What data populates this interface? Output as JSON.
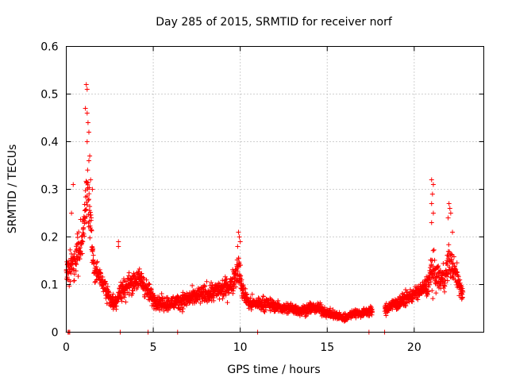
{
  "chart_data": {
    "type": "scatter",
    "title": "Day 285 of 2015, SRMTID for receiver norf",
    "xlabel": "GPS time / hours",
    "ylabel": "SRMTID / TECUs",
    "xlim": [
      0,
      24
    ],
    "ylim": [
      0,
      0.6
    ],
    "x_ticks": [
      0,
      5,
      10,
      15,
      20
    ],
    "x_tick_labels": [
      "0",
      "5",
      "10",
      "15",
      "20"
    ],
    "y_ticks": [
      0,
      0.1,
      0.2,
      0.3,
      0.4,
      0.5,
      0.6
    ],
    "y_tick_labels": [
      "0",
      "0.1",
      "0.2",
      "0.3",
      "0.4",
      "0.5",
      "0.6"
    ],
    "grid": true,
    "marker": "plus",
    "color": "#ff0000",
    "envelope": {
      "hours": [
        0.0,
        0.1,
        0.3,
        0.5,
        0.7,
        0.9,
        1.0,
        1.1,
        1.2,
        1.3,
        1.4,
        1.6,
        1.8,
        2.0,
        2.3,
        2.5,
        2.8,
        3.0,
        3.3,
        3.6,
        4.0,
        4.3,
        4.6,
        5.0,
        5.5,
        6.0,
        6.5,
        7.0,
        7.5,
        8.0,
        8.5,
        9.0,
        9.5,
        9.7,
        9.9,
        10.1,
        10.5,
        11.0,
        11.5,
        12.0,
        12.5,
        13.0,
        13.5,
        14.0,
        14.5,
        15.0,
        15.5,
        16.0,
        16.5,
        17.0,
        17.5,
        18.3,
        18.6,
        19.0,
        19.5,
        20.0,
        20.5,
        20.8,
        21.0,
        21.2,
        21.5,
        21.8,
        22.0,
        22.3,
        22.6,
        22.8
      ],
      "median": [
        0.12,
        0.13,
        0.14,
        0.15,
        0.17,
        0.19,
        0.22,
        0.26,
        0.3,
        0.27,
        0.22,
        0.13,
        0.12,
        0.11,
        0.09,
        0.07,
        0.06,
        0.08,
        0.09,
        0.1,
        0.11,
        0.11,
        0.09,
        0.07,
        0.06,
        0.06,
        0.065,
        0.07,
        0.075,
        0.08,
        0.085,
        0.09,
        0.1,
        0.12,
        0.14,
        0.09,
        0.06,
        0.06,
        0.06,
        0.055,
        0.05,
        0.05,
        0.045,
        0.05,
        0.05,
        0.04,
        0.035,
        0.03,
        0.04,
        0.04,
        0.045,
        0.045,
        0.055,
        0.06,
        0.07,
        0.08,
        0.09,
        0.1,
        0.13,
        0.12,
        0.11,
        0.12,
        0.15,
        0.13,
        0.1,
        0.08
      ],
      "spread": [
        0.04,
        0.05,
        0.06,
        0.07,
        0.08,
        0.09,
        0.1,
        0.12,
        0.14,
        0.12,
        0.09,
        0.05,
        0.04,
        0.03,
        0.03,
        0.03,
        0.03,
        0.04,
        0.04,
        0.04,
        0.04,
        0.04,
        0.035,
        0.03,
        0.025,
        0.025,
        0.03,
        0.03,
        0.03,
        0.035,
        0.035,
        0.035,
        0.04,
        0.05,
        0.06,
        0.035,
        0.025,
        0.025,
        0.025,
        0.02,
        0.02,
        0.02,
        0.02,
        0.02,
        0.02,
        0.015,
        0.015,
        0.015,
        0.015,
        0.015,
        0.015,
        0.02,
        0.02,
        0.025,
        0.025,
        0.025,
        0.03,
        0.04,
        0.08,
        0.06,
        0.04,
        0.05,
        0.06,
        0.05,
        0.04,
        0.03
      ]
    },
    "highlighted_points": [
      {
        "x": 0.4,
        "y": 0.31
      },
      {
        "x": 0.3,
        "y": 0.25
      },
      {
        "x": 1.15,
        "y": 0.52
      },
      {
        "x": 1.2,
        "y": 0.51
      },
      {
        "x": 1.1,
        "y": 0.47
      },
      {
        "x": 1.2,
        "y": 0.46
      },
      {
        "x": 1.25,
        "y": 0.44
      },
      {
        "x": 1.3,
        "y": 0.42
      },
      {
        "x": 1.2,
        "y": 0.4
      },
      {
        "x": 1.35,
        "y": 0.37
      },
      {
        "x": 1.3,
        "y": 0.36
      },
      {
        "x": 1.4,
        "y": 0.32
      },
      {
        "x": 1.5,
        "y": 0.3
      },
      {
        "x": 3.0,
        "y": 0.19
      },
      {
        "x": 3.0,
        "y": 0.18
      },
      {
        "x": 9.9,
        "y": 0.21
      },
      {
        "x": 9.95,
        "y": 0.2
      },
      {
        "x": 10.0,
        "y": 0.19
      },
      {
        "x": 9.85,
        "y": 0.18
      },
      {
        "x": 21.0,
        "y": 0.32
      },
      {
        "x": 21.1,
        "y": 0.31
      },
      {
        "x": 21.05,
        "y": 0.29
      },
      {
        "x": 21.0,
        "y": 0.27
      },
      {
        "x": 21.1,
        "y": 0.25
      },
      {
        "x": 21.0,
        "y": 0.23
      },
      {
        "x": 22.0,
        "y": 0.27
      },
      {
        "x": 22.05,
        "y": 0.26
      },
      {
        "x": 22.1,
        "y": 0.25
      },
      {
        "x": 21.95,
        "y": 0.24
      },
      {
        "x": 22.2,
        "y": 0.21
      }
    ],
    "zero_points": [
      0.1,
      0.15,
      0.2,
      3.1,
      4.7,
      6.4,
      11.0,
      17.4,
      18.3
    ]
  }
}
